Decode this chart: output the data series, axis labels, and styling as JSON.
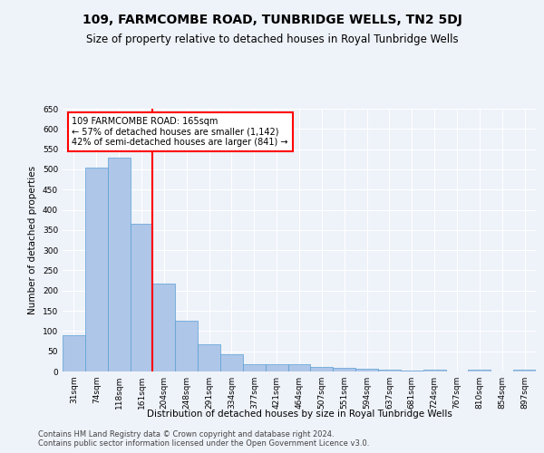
{
  "title": "109, FARMCOMBE ROAD, TUNBRIDGE WELLS, TN2 5DJ",
  "subtitle": "Size of property relative to detached houses in Royal Tunbridge Wells",
  "xlabel": "Distribution of detached houses by size in Royal Tunbridge Wells",
  "ylabel": "Number of detached properties",
  "footer1": "Contains HM Land Registry data © Crown copyright and database right 2024.",
  "footer2": "Contains public sector information licensed under the Open Government Licence v3.0.",
  "annotation_line1": "109 FARMCOMBE ROAD: 165sqm",
  "annotation_line2": "← 57% of detached houses are smaller (1,142)",
  "annotation_line3": "42% of semi-detached houses are larger (841) →",
  "bar_labels": [
    "31sqm",
    "74sqm",
    "118sqm",
    "161sqm",
    "204sqm",
    "248sqm",
    "291sqm",
    "334sqm",
    "377sqm",
    "421sqm",
    "464sqm",
    "507sqm",
    "551sqm",
    "594sqm",
    "637sqm",
    "681sqm",
    "724sqm",
    "767sqm",
    "810sqm",
    "854sqm",
    "897sqm"
  ],
  "bar_values": [
    90,
    505,
    530,
    365,
    218,
    125,
    68,
    42,
    17,
    18,
    18,
    11,
    10,
    6,
    5,
    2,
    5,
    1,
    5,
    1,
    5
  ],
  "bar_color": "#aec6e8",
  "bar_edge_color": "#5a9fd4",
  "red_line_x": 3.5,
  "ylim": [
    0,
    650
  ],
  "yticks": [
    0,
    50,
    100,
    150,
    200,
    250,
    300,
    350,
    400,
    450,
    500,
    550,
    600,
    650
  ],
  "bg_color": "#eef2f9",
  "grid_color": "#ffffff",
  "title_fontsize": 10,
  "subtitle_fontsize": 8.5,
  "axis_label_fontsize": 7.5,
  "tick_fontsize": 6.5,
  "annotation_fontsize": 7,
  "footer_fontsize": 6
}
